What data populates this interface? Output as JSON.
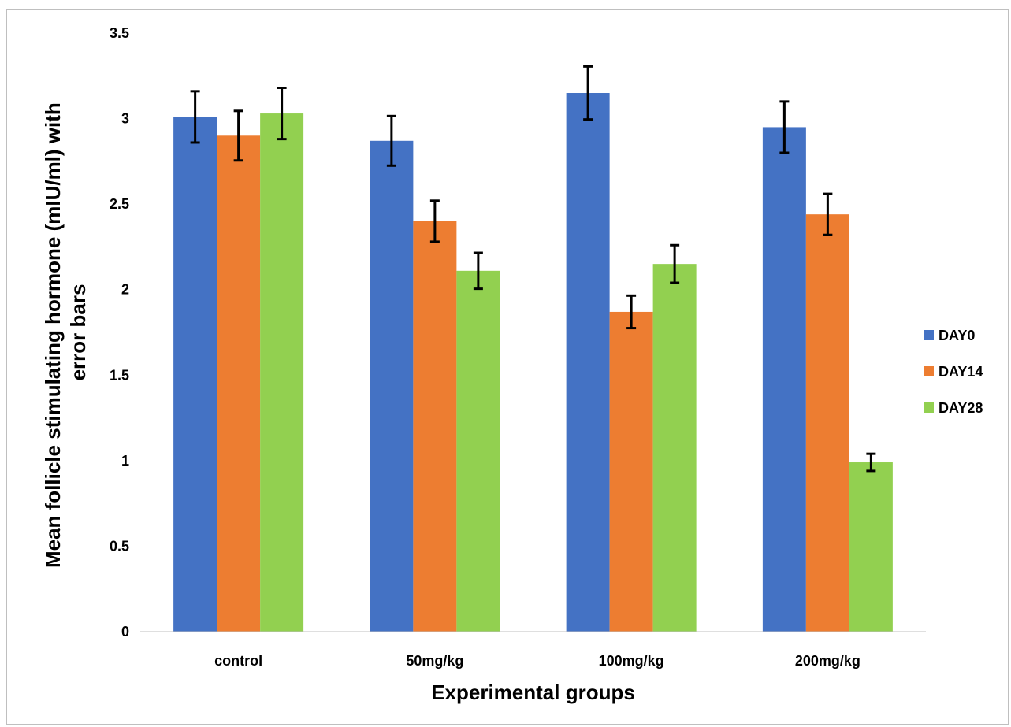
{
  "chart_data": {
    "type": "bar",
    "categories": [
      "control",
      "50mg/kg",
      "100mg/kg",
      "200mg/kg"
    ],
    "series": [
      {
        "name": "DAY0",
        "color": "#4472c4",
        "values": [
          3.01,
          2.87,
          3.15,
          2.95
        ],
        "errors": [
          0.15,
          0.145,
          0.155,
          0.15
        ]
      },
      {
        "name": "DAY14",
        "color": "#ed7d31",
        "values": [
          2.9,
          2.4,
          1.87,
          2.44
        ],
        "errors": [
          0.145,
          0.12,
          0.095,
          0.12
        ]
      },
      {
        "name": "DAY28",
        "color": "#92d050",
        "values": [
          3.03,
          2.11,
          2.15,
          0.99
        ],
        "errors": [
          0.15,
          0.105,
          0.11,
          0.05
        ]
      }
    ],
    "xlabel": "Experimental groups",
    "ylabel_lines": [
      "Mean follicle stimulating hormone (mIU/ml) with",
      "error bars"
    ],
    "ylim": [
      0,
      3.5
    ],
    "yticks": [
      "0",
      "0.5",
      "1",
      "1.5",
      "2",
      "2.5",
      "3",
      "3.5"
    ],
    "grid": false,
    "legend_position": "right"
  }
}
